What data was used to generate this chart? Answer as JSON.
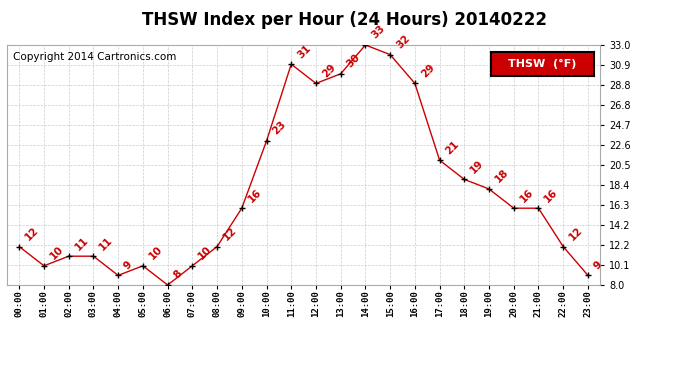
{
  "title": "THSW Index per Hour (24 Hours) 20140222",
  "copyright": "Copyright 2014 Cartronics.com",
  "legend_label": "THSW  (°F)",
  "hours": [
    "00:00",
    "01:00",
    "02:00",
    "03:00",
    "04:00",
    "05:00",
    "06:00",
    "07:00",
    "08:00",
    "09:00",
    "10:00",
    "11:00",
    "12:00",
    "13:00",
    "14:00",
    "15:00",
    "16:00",
    "17:00",
    "18:00",
    "19:00",
    "20:00",
    "21:00",
    "22:00",
    "23:00"
  ],
  "values": [
    12,
    10,
    11,
    11,
    9,
    10,
    8,
    10,
    12,
    16,
    23,
    31,
    29,
    30,
    33,
    32,
    29,
    21,
    19,
    18,
    16,
    16,
    12,
    9
  ],
  "line_color": "#cc0000",
  "marker_color": "#000000",
  "label_color": "#cc0000",
  "background_color": "#ffffff",
  "grid_color": "#cccccc",
  "ylim": [
    8.0,
    33.0
  ],
  "yticks": [
    8.0,
    10.1,
    12.2,
    14.2,
    16.3,
    18.4,
    20.5,
    22.6,
    24.7,
    26.8,
    28.8,
    30.9,
    33.0
  ],
  "title_fontsize": 12,
  "copyright_fontsize": 7.5,
  "legend_fontsize": 8,
  "label_fontsize": 7.5
}
